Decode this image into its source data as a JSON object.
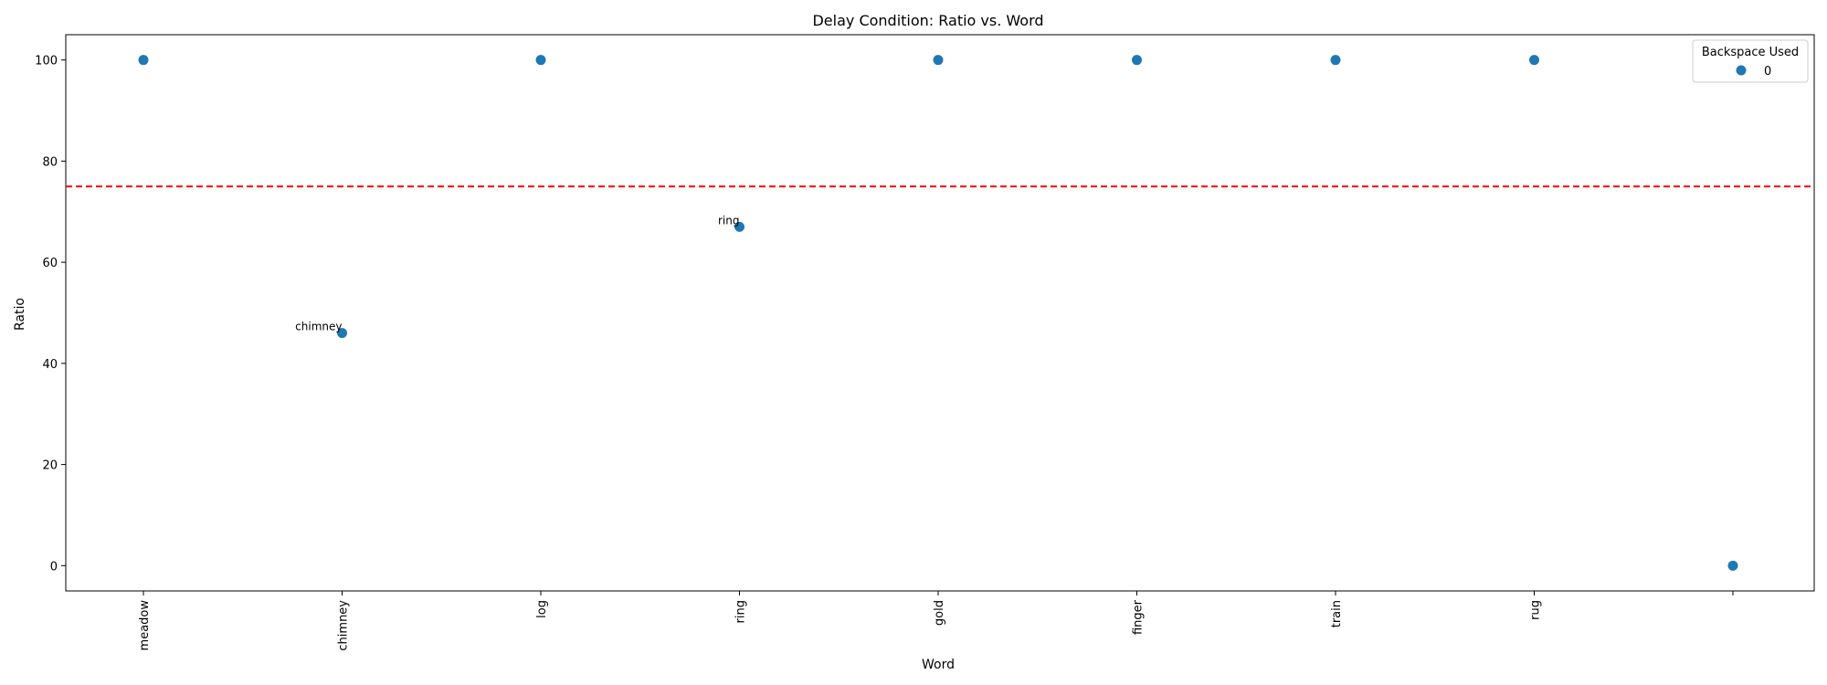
{
  "chart_data": {
    "type": "scatter",
    "title": "Delay Condition: Ratio vs. Word",
    "xlabel": "Word",
    "ylabel": "Ratio",
    "categories": [
      "meadow",
      "chimney",
      "log",
      "ring",
      "gold",
      "finger",
      "train",
      "rug",
      ""
    ],
    "series": [
      {
        "name": "0",
        "values": [
          100,
          46,
          100,
          67,
          100,
          100,
          100,
          100,
          0
        ]
      }
    ],
    "ylim": [
      -5,
      105
    ],
    "yticks": [
      0,
      20,
      40,
      60,
      80,
      100
    ],
    "threshold": {
      "value": 75,
      "color": "#ff0000",
      "style": "dashed"
    },
    "annotations": [
      {
        "text": "chimney",
        "category_index": 1,
        "value": 46
      },
      {
        "text": "ring",
        "category_index": 3,
        "value": 67
      }
    ],
    "legend": {
      "title": "Backspace Used",
      "position": "top-right"
    },
    "marker_color": "#1f77b4"
  }
}
